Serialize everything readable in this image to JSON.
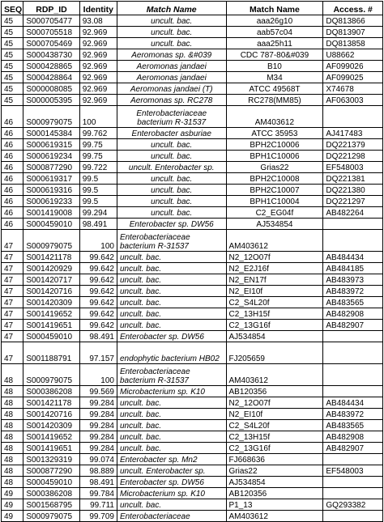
{
  "headers": [
    "SEQ",
    "RDP_ID",
    "Identity",
    "Match Name",
    "Match Name",
    "Access. #"
  ],
  "rows": [
    {
      "seq": "45",
      "rdp": "S000705477",
      "identity": "93.08",
      "match_italic": "uncult. bac.",
      "match_name": "aaa26g10",
      "access": "DQ813866",
      "align": "center",
      "tall": false
    },
    {
      "seq": "45",
      "rdp": "S000705518",
      "identity": "92.969",
      "match_italic": "uncult. bac.",
      "match_name": "aab57c04",
      "access": "DQ813907",
      "align": "center",
      "tall": false
    },
    {
      "seq": "45",
      "rdp": "S000705469",
      "identity": "92.969",
      "match_italic": "uncult. bac.",
      "match_name": "aaa25h11",
      "access": "DQ813858",
      "align": "center",
      "tall": false
    },
    {
      "seq": "45",
      "rdp": "S000438730",
      "identity": "92.969",
      "match_italic": "Aeromonas sp. &#039",
      "match_name": "CDC 787-80&#039",
      "access": "U88662",
      "align": "center",
      "tall": false
    },
    {
      "seq": "45",
      "rdp": "S000428865",
      "identity": "92.969",
      "match_italic": "Aeromonas jandaei",
      "match_name": "B10",
      "access": "AF099026",
      "align": "center",
      "tall": false
    },
    {
      "seq": "45",
      "rdp": "S000428864",
      "identity": "92.969",
      "match_italic": "Aeromonas jandaei",
      "match_name": "M34",
      "access": "AF099025",
      "align": "center",
      "tall": false
    },
    {
      "seq": "45",
      "rdp": "S000008085",
      "identity": "92.969",
      "match_italic": "Aeromonas jandaei (T)",
      "match_name": "ATCC 49568T",
      "access": "X74678",
      "align": "center",
      "tall": false
    },
    {
      "seq": "45",
      "rdp": "S000005395",
      "identity": "92.969",
      "match_italic": "Aeromonas sp. RC278",
      "match_name": "RC278(MM85)",
      "access": "AF063003",
      "align": "center",
      "tall": false
    },
    {
      "seq": "46",
      "rdp": "S000979075",
      "identity": "100",
      "match_italic": "Enterobacteriaceae bacterium R-31537",
      "match_name": "AM403612",
      "access": "",
      "align": "center",
      "tall": true
    },
    {
      "seq": "46",
      "rdp": "S000145384",
      "identity": "99.762",
      "match_italic": "Enterobacter asburiae",
      "match_name": "ATCC 35953",
      "access": "AJ417483",
      "align": "center",
      "tall": false
    },
    {
      "seq": "46",
      "rdp": "S000619315",
      "identity": "99.75",
      "match_italic": "uncult. bac.",
      "match_name": "BPH2C10006",
      "access": "DQ221379",
      "align": "center",
      "tall": false
    },
    {
      "seq": "46",
      "rdp": "S000619234",
      "identity": "99.75",
      "match_italic": "uncult. bac.",
      "match_name": "BPH1C10006",
      "access": "DQ221298",
      "align": "center",
      "tall": false
    },
    {
      "seq": "46",
      "rdp": "S000877290",
      "identity": "99.722",
      "match_italic": "uncult. Enterobacter sp.",
      "match_name": "Grias22",
      "access": "EF548003",
      "align": "center",
      "tall": false
    },
    {
      "seq": "46",
      "rdp": "S000619317",
      "identity": "99.5",
      "match_italic": "uncult. bac.",
      "match_name": "BPH2C10008",
      "access": "DQ221381",
      "align": "center",
      "tall": false
    },
    {
      "seq": "46",
      "rdp": "S000619316",
      "identity": "99.5",
      "match_italic": "uncult. bac.",
      "match_name": "BPH2C10007",
      "access": "DQ221380",
      "align": "center",
      "tall": false
    },
    {
      "seq": "46",
      "rdp": "S000619233",
      "identity": "99.5",
      "match_italic": "uncult. bac.",
      "match_name": "BPH1C10004",
      "access": "DQ221297",
      "align": "center",
      "tall": false
    },
    {
      "seq": "46",
      "rdp": "S001419008",
      "identity": "99.294",
      "match_italic": "uncult. bac.",
      "match_name": "C2_EG04f",
      "access": "AB482264",
      "align": "center",
      "tall": false
    },
    {
      "seq": "46",
      "rdp": "S000459010",
      "identity": "98.491",
      "match_italic": "Enterobacter sp. DW56",
      "match_name": "AJ534854",
      "access": "",
      "align": "center",
      "tall": false
    },
    {
      "seq": "47",
      "rdp": "S000979075",
      "identity": "100",
      "match_italic": "Enterobacteriaceae bacterium R-31537",
      "match_name": "AM403612",
      "access": "",
      "align": "left",
      "tall": true
    },
    {
      "seq": "47",
      "rdp": "S001421178",
      "identity": "99.642",
      "match_italic": "uncult. bac.",
      "match_name": "N2_12O07f",
      "access": "AB484434",
      "align": "left",
      "tall": false
    },
    {
      "seq": "47",
      "rdp": "S001420929",
      "identity": "99.642",
      "match_italic": "uncult. bac.",
      "match_name": "N2_E2J16f",
      "access": "AB484185",
      "align": "left",
      "tall": false
    },
    {
      "seq": "47",
      "rdp": "S001420717",
      "identity": "99.642",
      "match_italic": "uncult. bac.",
      "match_name": "N2_EN17f",
      "access": "AB483973",
      "align": "left",
      "tall": false
    },
    {
      "seq": "47",
      "rdp": "S001420716",
      "identity": "99.642",
      "match_italic": "uncult. bac.",
      "match_name": "N2_EI10f",
      "access": "AB483972",
      "align": "left",
      "tall": false
    },
    {
      "seq": "47",
      "rdp": "S001420309",
      "identity": "99.642",
      "match_italic": "uncult. bac.",
      "match_name": "C2_S4L20f",
      "access": "AB483565",
      "align": "left",
      "tall": false
    },
    {
      "seq": "47",
      "rdp": "S001419652",
      "identity": "99.642",
      "match_italic": "uncult. bac.",
      "match_name": "C2_13H15f",
      "access": "AB482908",
      "align": "left",
      "tall": false
    },
    {
      "seq": "47",
      "rdp": "S001419651",
      "identity": "99.642",
      "match_italic": "uncult. bac.",
      "match_name": "C2_13G16f",
      "access": "AB482907",
      "align": "left",
      "tall": false
    },
    {
      "seq": "47",
      "rdp": "S000459010",
      "identity": "98.491",
      "match_italic": "Enterobacter sp. DW56",
      "match_name": "AJ534854",
      "access": "",
      "align": "left",
      "tall": false
    },
    {
      "seq": "47",
      "rdp": "S001188791",
      "identity": "97.157",
      "match_italic": "endophytic bacterium HB02",
      "match_name": "FJ205659",
      "access": "",
      "align": "left",
      "tall": true
    },
    {
      "seq": "48",
      "rdp": "S000979075",
      "identity": "100",
      "match_italic": "Enterobacteriaceae bacterium R-31537",
      "match_name": "AM403612",
      "access": "",
      "align": "left",
      "tall": true
    },
    {
      "seq": "48",
      "rdp": "S000386208",
      "identity": "99.569",
      "match_italic": "Microbacterium sp. K10",
      "match_name": "AB120356",
      "access": "",
      "align": "left",
      "tall": false
    },
    {
      "seq": "48",
      "rdp": "S001421178",
      "identity": "99.284",
      "match_italic": "uncult. bac.",
      "match_name": "N2_12O07f",
      "access": "AB484434",
      "align": "left",
      "tall": false
    },
    {
      "seq": "48",
      "rdp": "S001420716",
      "identity": "99.284",
      "match_italic": "uncult. bac.",
      "match_name": "N2_EI10f",
      "access": "AB483972",
      "align": "left",
      "tall": false
    },
    {
      "seq": "48",
      "rdp": "S001420309",
      "identity": "99.284",
      "match_italic": "uncult. bac.",
      "match_name": "C2_S4L20f",
      "access": "AB483565",
      "align": "left",
      "tall": false
    },
    {
      "seq": "48",
      "rdp": "S001419652",
      "identity": "99.284",
      "match_italic": "uncult. bac.",
      "match_name": "C2_13H15f",
      "access": "AB482908",
      "align": "left",
      "tall": false
    },
    {
      "seq": "48",
      "rdp": "S001419651",
      "identity": "99.284",
      "match_italic": "uncult. bac.",
      "match_name": "C2_13G16f",
      "access": "AB482907",
      "align": "left",
      "tall": false
    },
    {
      "seq": "48",
      "rdp": "S001329319",
      "identity": "99.074",
      "match_italic": "Enterobacter sp. Mn2",
      "match_name": "FJ668636",
      "access": "",
      "align": "left",
      "tall": false
    },
    {
      "seq": "48",
      "rdp": "S000877290",
      "identity": "98.889",
      "match_italic": "uncult. Enterobacter sp.",
      "match_name": "Grias22",
      "access": "EF548003",
      "align": "left",
      "tall": false
    },
    {
      "seq": "48",
      "rdp": "S000459010",
      "identity": "98.491",
      "match_italic": "Enterobacter sp. DW56",
      "match_name": "AJ534854",
      "access": "",
      "align": "left",
      "tall": false
    },
    {
      "seq": "49",
      "rdp": "S000386208",
      "identity": "99.784",
      "match_italic": "Microbacterium sp. K10",
      "match_name": "AB120356",
      "access": "",
      "align": "left",
      "tall": false
    },
    {
      "seq": "49",
      "rdp": "S001568795",
      "identity": "99.711",
      "match_italic": "uncult. bac.",
      "match_name": "P1_13",
      "access": "GQ293382",
      "align": "left",
      "tall": false
    },
    {
      "seq": "49",
      "rdp": "S000979075",
      "identity": "99.709",
      "match_italic": "Enterobacteriaceae",
      "match_name": "AM403612",
      "access": "",
      "align": "left",
      "tall": false
    }
  ]
}
